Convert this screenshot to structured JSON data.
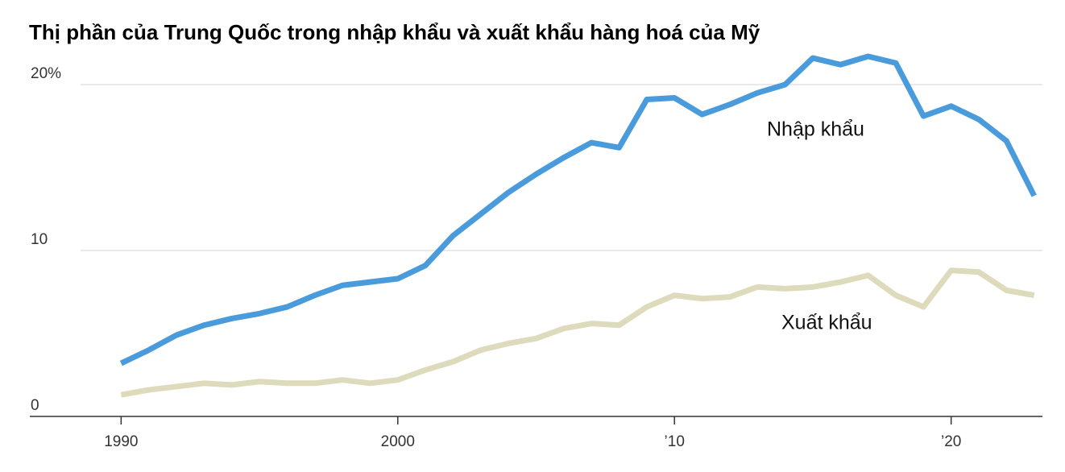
{
  "chart_data": {
    "type": "line",
    "title": "Thị phần của Trung Quốc trong nhập khẩu và xuất khẩu hàng hoá của Mỹ",
    "x": [
      1990,
      1991,
      1992,
      1993,
      1994,
      1995,
      1996,
      1997,
      1998,
      1999,
      2000,
      2001,
      2002,
      2003,
      2004,
      2005,
      2006,
      2007,
      2008,
      2009,
      2010,
      2011,
      2012,
      2013,
      2014,
      2015,
      2016,
      2017,
      2018,
      2019,
      2020,
      2021,
      2022,
      2023
    ],
    "series": [
      {
        "name": "Nhập khẩu",
        "color": "#4a9bdb",
        "values": [
          3.2,
          4.0,
          4.9,
          5.5,
          5.9,
          6.2,
          6.6,
          7.3,
          7.9,
          8.1,
          8.3,
          9.1,
          10.9,
          12.2,
          13.5,
          14.6,
          15.6,
          16.5,
          16.2,
          19.1,
          19.2,
          18.2,
          18.8,
          19.5,
          20.0,
          21.6,
          21.2,
          21.7,
          21.3,
          18.1,
          18.7,
          17.9,
          16.6,
          13.3
        ]
      },
      {
        "name": "Xuất khẩu",
        "color": "#dedbbc",
        "values": [
          1.3,
          1.6,
          1.8,
          2.0,
          1.9,
          2.1,
          2.0,
          2.0,
          2.2,
          2.0,
          2.2,
          2.8,
          3.3,
          4.0,
          4.4,
          4.7,
          5.3,
          5.6,
          5.5,
          6.6,
          7.3,
          7.1,
          7.2,
          7.8,
          7.7,
          7.8,
          8.1,
          8.5,
          7.3,
          6.6,
          8.8,
          8.7,
          7.6,
          7.3
        ]
      }
    ],
    "xlim": [
      1986.7,
      2023.3
    ],
    "xticks": [
      1990,
      2000,
      {
        "value": 2010,
        "label": "’10"
      },
      {
        "value": 2020,
        "label": "’20"
      }
    ],
    "ylim": [
      0,
      22
    ],
    "yticks": [
      0,
      10,
      {
        "value": 20,
        "label": "20%"
      }
    ],
    "grid": true
  }
}
